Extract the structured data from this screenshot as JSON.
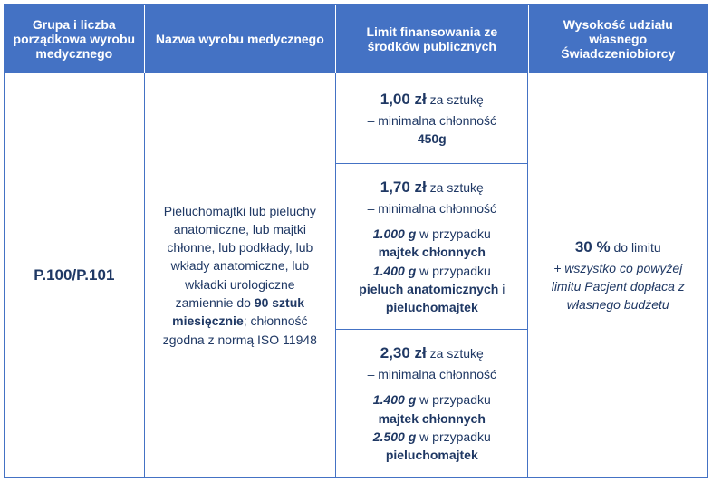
{
  "colors": {
    "header_bg": "#4472c4",
    "header_text": "#ffffff",
    "body_text": "#1f3864",
    "border": "#4472c4"
  },
  "headers": {
    "c1": "Grupa i liczba porządkowa wyrobu medycznego",
    "c2": "Nazwa wyrobu medycznego",
    "c3": "Limit finansowania ze środków publicznych",
    "c4": "Wysokość udziału własnego Świadczeniobiorcy"
  },
  "code": "P.100/P.101",
  "desc": {
    "pre": "Pieluchomajtki lub pieluchy anatomiczne, lub majtki chłonne, lub podkłady, lub wkłady anatomiczne, lub wkładki urologiczne zamiennie do ",
    "bold1": "90 sztuk miesięcznie",
    "mid": "; chłonność zgodna z normą ISO 11948"
  },
  "limits": {
    "l1": {
      "price": "1,00 zł",
      "per": " za sztukę",
      "mc": "– minimalna chłonność",
      "gram": "450g"
    },
    "l2": {
      "price": "1,70 zł",
      "per": " za sztukę",
      "mc": "– minimalna chłonność",
      "g1": "1.000 g",
      "t1": " w przypadku ",
      "b1": "majtek chłonnych",
      "g2": "1.400 g",
      "t2": " w przypadku ",
      "b2": "pieluch anatomicznych",
      "and": " i ",
      "b3": "pieluchomajtek"
    },
    "l3": {
      "price": "2,30 zł",
      "per": " za sztukę",
      "mc": "– minimalna chłonność",
      "g1": "1.400 g",
      "t1": " w przypadku ",
      "b1": "majtek chłonnych",
      "g2": "2.500 g",
      "t2": " w przypadku ",
      "b2": "pieluchomajtek"
    }
  },
  "udz": {
    "big": "30 %",
    "after": " do limitu",
    "italic": "+ wszystko co powyżej limitu Pacjent dopłaca z własnego budżetu"
  }
}
